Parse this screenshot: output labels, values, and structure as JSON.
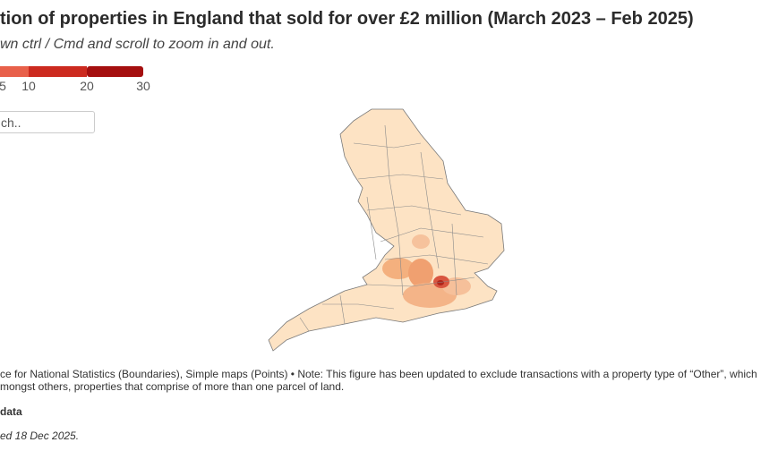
{
  "header": {
    "title": "tion of properties in England that sold for over £2 million (March 2023 – Feb 2025)",
    "subtitle": "wn ctrl / Cmd and scroll to zoom in and out."
  },
  "legend": {
    "ticks": [
      5,
      10,
      20,
      30
    ],
    "colors": [
      "#e8604a",
      "#cc2a1f",
      "#a50f0f"
    ]
  },
  "search": {
    "placeholder": "ch.."
  },
  "footer": {
    "source_line_1": "ce for National Statistics (Boundaries), Simple maps (Points) • Note: This figure has been updated to exclude transactions with a property type of “Other”, which",
    "source_line_2": "mongst others, properties that comprise of more than one parcel of land.",
    "data_link": "data",
    "updated": "ed 18 Dec 2025."
  }
}
